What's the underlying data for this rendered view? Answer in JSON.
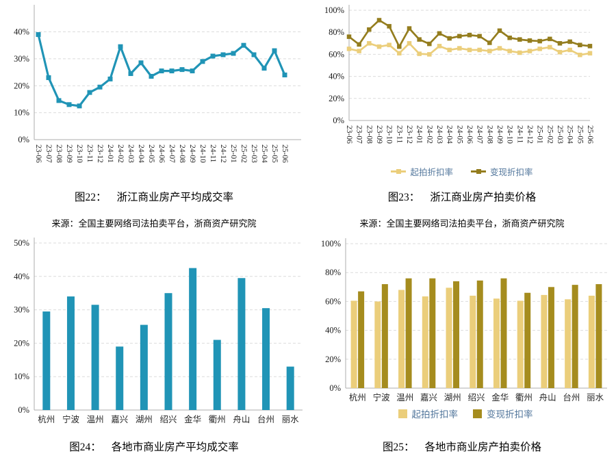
{
  "page": {
    "background": "#ffffff"
  },
  "figures": [
    {
      "caption_label": "图22：",
      "caption_title": "浙江商业房产平均成交率",
      "source": "来源：全国主要网络司法拍卖平台，浙商资产研究院"
    },
    {
      "caption_label": "图23：",
      "caption_title": "浙江商业房产拍卖价格",
      "source": "来源：全国主要网络司法拍卖平台，浙商资产研究院"
    },
    {
      "caption_label": "图24：",
      "caption_title": "各地市商业房产平均成交率"
    },
    {
      "caption_label": "图25：",
      "caption_title": "各地市商业房产拍卖价格"
    }
  ],
  "chart_data": [
    {
      "type": "line",
      "title": "图22：浙江商业房产平均成交率",
      "x": [
        "23-06",
        "23-07",
        "23-08",
        "23-09",
        "23-10",
        "23-11",
        "23-12",
        "24-01",
        "24-02",
        "24-03",
        "24-04",
        "24-05",
        "24-06",
        "24-07",
        "24-08",
        "24-09",
        "24-10",
        "24-11",
        "24-12",
        "25-01",
        "25-02",
        "25-03",
        "25-04",
        "25-05",
        "25-06"
      ],
      "series": [
        {
          "color": "#2094B6",
          "values": [
            39,
            23,
            14.5,
            13,
            12.5,
            17.5,
            19.5,
            22.5,
            34.5,
            24.5,
            28.5,
            23.5,
            25.5,
            25.5,
            26,
            25.5,
            29,
            31,
            31.5,
            32,
            35,
            31.5,
            26.5,
            33,
            24
          ]
        }
      ],
      "xlabel": "",
      "ylabel": "",
      "ylim": [
        0,
        48
      ],
      "yticks": [
        0,
        10,
        20,
        30,
        40
      ],
      "grid": true,
      "legend": "none"
    },
    {
      "type": "line",
      "title": "图23：浙江商业房产拍卖价格",
      "x": [
        "23-06",
        "23-07",
        "23-08",
        "23-09",
        "23-10",
        "23-11",
        "23-12",
        "24-01",
        "24-02",
        "24-03",
        "24-04",
        "24-05",
        "24-06",
        "24-07",
        "24-08",
        "24-09",
        "24-10",
        "24-11",
        "24-12",
        "25-01",
        "25-02",
        "25-03",
        "25-04",
        "25-05",
        "25-06"
      ],
      "series": [
        {
          "name": "起拍折扣率",
          "color": "#EBCE7B",
          "values": [
            65,
            63,
            70,
            67,
            68.5,
            61,
            70,
            60.5,
            60,
            67.5,
            64,
            65.5,
            64,
            64,
            63,
            65.5,
            63,
            61.5,
            63,
            65,
            66.5,
            62,
            64,
            59.5,
            61
          ]
        },
        {
          "name": "变现折扣率",
          "color": "#947D1E",
          "values": [
            76,
            69,
            82.5,
            91,
            85.5,
            67,
            83.5,
            73.5,
            69.5,
            79,
            74.5,
            76.5,
            77.5,
            76.5,
            70.5,
            81.5,
            75,
            73.5,
            72.5,
            72,
            74,
            70,
            71.5,
            68.5,
            67.5
          ]
        }
      ],
      "xlabel": "",
      "ylabel": "",
      "ylim": [
        0,
        100
      ],
      "yticks": [
        0,
        20,
        40,
        60,
        80,
        100
      ],
      "grid": true,
      "legend": "bottom"
    },
    {
      "type": "bar",
      "title": "图24：各地市商业房产平均成交率",
      "categories": [
        "杭州",
        "宁波",
        "温州",
        "嘉兴",
        "湖州",
        "绍兴",
        "金华",
        "衢州",
        "舟山",
        "台州",
        "丽水"
      ],
      "series": [
        {
          "color": "#2094B6",
          "values": [
            29.5,
            34,
            31.5,
            19,
            25.5,
            35,
            42.5,
            21,
            39.5,
            30.5,
            13
          ]
        }
      ],
      "xlabel": "",
      "ylabel": "",
      "ylim": [
        0,
        50
      ],
      "yticks": [
        0,
        10,
        20,
        30,
        40,
        50
      ],
      "grid": true,
      "legend": "none"
    },
    {
      "type": "bar",
      "title": "图25：各地市商业房产拍卖价格",
      "categories": [
        "杭州",
        "宁波",
        "温州",
        "嘉兴",
        "湖州",
        "绍兴",
        "金华",
        "衢州",
        "舟山",
        "台州",
        "丽水"
      ],
      "series": [
        {
          "name": "起拍折扣率",
          "color": "#EBCE7B",
          "values": [
            60.5,
            60,
            68,
            63.5,
            69.5,
            64,
            62,
            60.5,
            64.5,
            61.5,
            64
          ]
        },
        {
          "name": "变现折扣率",
          "color": "#A58C1E",
          "values": [
            67,
            72,
            76,
            76,
            74,
            74.5,
            76,
            66,
            70,
            71.5,
            72
          ]
        }
      ],
      "xlabel": "",
      "ylabel": "",
      "ylim": [
        0,
        100
      ],
      "yticks": [
        0,
        20,
        40,
        60,
        80,
        100
      ],
      "grid": true,
      "legend": "bottom"
    }
  ]
}
